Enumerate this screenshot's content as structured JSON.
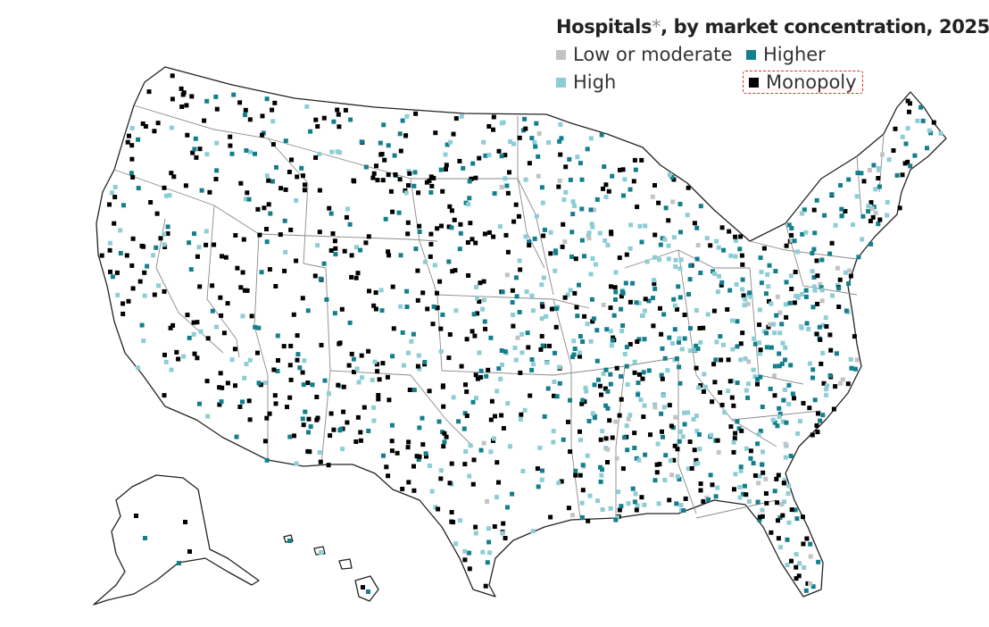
{
  "title": {
    "main": "Hospitals",
    "asterisk": "*",
    "rest": ", by market concentration, 2025"
  },
  "legend": [
    {
      "label": "Low or moderate",
      "color": "#c3c3c3"
    },
    {
      "label": "Higher",
      "color": "#147f8c"
    },
    {
      "label": "High",
      "color": "#8ccdd6"
    },
    {
      "label": "Monopoly",
      "color": "#000000",
      "selected": true
    }
  ],
  "map": {
    "region": "United States",
    "state_border_color": "#8a8a8a",
    "outline_color": "#111111"
  }
}
